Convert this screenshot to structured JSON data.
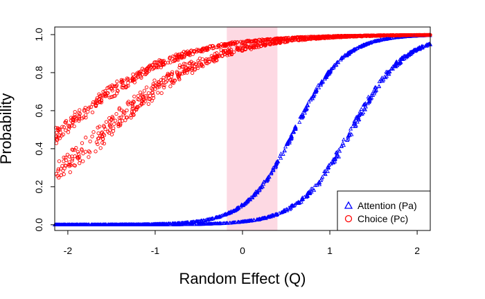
{
  "chart_data": {
    "type": "scatter",
    "title": "",
    "xlabel": "Random Effect (Q)",
    "ylabel": "Probability",
    "xlim": [
      -2.15,
      2.15
    ],
    "ylim": [
      -0.03,
      1.04
    ],
    "x_ticks": [
      -2,
      -1,
      0,
      1,
      2
    ],
    "x_tick_labels": [
      "-2",
      "-1",
      "0",
      "1",
      "2"
    ],
    "y_ticks": [
      0.0,
      0.2,
      0.4,
      0.6,
      0.8,
      1.0
    ],
    "y_tick_labels": [
      "0.0",
      "0.2",
      "0.4",
      "0.6",
      "0.8",
      "1.0"
    ],
    "highlight_band": {
      "x_from": -0.18,
      "x_to": 0.4,
      "color": "#fdd9e3"
    },
    "legend": {
      "placement": "bottom-right",
      "entries": [
        {
          "label": "Attention (Pa)",
          "marker": "triangle",
          "color": "#0000ff"
        },
        {
          "label": "Choice (Pc)",
          "marker": "circle",
          "color": "#ff0000"
        }
      ]
    },
    "series": [
      {
        "name": "Attention (Pa)",
        "marker": "triangle",
        "color": "#0000ff",
        "bands": [
          {
            "x_start": -2.15,
            "x_end": 2.15,
            "logistic_midpoint": 0.6,
            "logistic_slope": 3.6,
            "spread": 0.012,
            "jitter": 0.004,
            "points": 800
          },
          {
            "x_start": -2.15,
            "x_end": 2.15,
            "logistic_midpoint": 1.25,
            "logistic_slope": 3.3,
            "spread": 0.02,
            "jitter": 0.006,
            "points": 700
          }
        ]
      },
      {
        "name": "Choice (Pc)",
        "marker": "circle",
        "color": "#ff0000",
        "bands": [
          {
            "x_start": -2.15,
            "x_end": 2.15,
            "logistic_midpoint": -2.05,
            "logistic_slope": 1.55,
            "spread": 0.035,
            "jitter": 0.012,
            "points": 700
          },
          {
            "x_start": -2.15,
            "x_end": 2.15,
            "logistic_midpoint": -1.55,
            "logistic_slope": 1.65,
            "spread": 0.05,
            "jitter": 0.018,
            "points": 700
          }
        ]
      }
    ]
  }
}
